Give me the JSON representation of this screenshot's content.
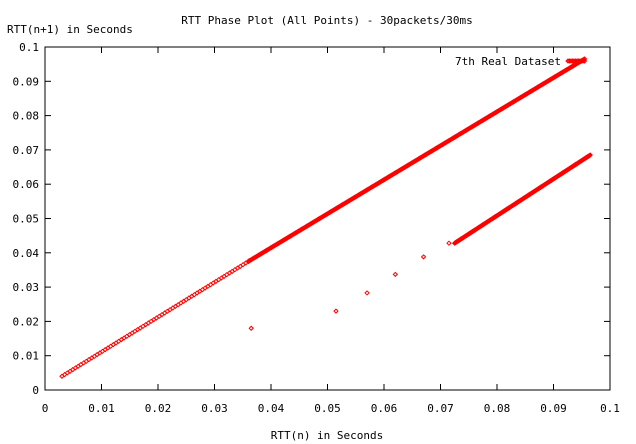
{
  "chart_data": {
    "type": "scatter",
    "title": "RTT Phase Plot (All Points) - 30packets/30ms",
    "xlabel": "RTT(n) in Seconds",
    "ylabel": "RTT(n+1) in Seconds",
    "xlim": [
      0,
      0.1
    ],
    "ylim": [
      0,
      0.1
    ],
    "xticks": [
      "0",
      "0.01",
      "0.02",
      "0.03",
      "0.04",
      "0.05",
      "0.06",
      "0.07",
      "0.08",
      "0.09",
      "0.1"
    ],
    "yticks": [
      "0",
      "0.01",
      "0.02",
      "0.03",
      "0.04",
      "0.05",
      "0.06",
      "0.07",
      "0.08",
      "0.09",
      "0.1"
    ],
    "grid": false,
    "legend_position": "top-right",
    "series": [
      {
        "name": "7th Real Dataset",
        "color": "#ff0000",
        "marker": "diamond",
        "segments": [
          {
            "x_start": 0.003,
            "x_end": 0.036,
            "y_start": 0.004,
            "y_end": 0.0375,
            "count": 70
          },
          {
            "x_start": 0.036,
            "x_end": 0.0955,
            "y_start": 0.0375,
            "y_end": 0.0965,
            "count": 420
          },
          {
            "x_start": 0.0725,
            "x_end": 0.0965,
            "y_start": 0.0428,
            "y_end": 0.0685,
            "count": 240
          }
        ],
        "points": [
          {
            "x": 0.0365,
            "y": 0.018
          },
          {
            "x": 0.0515,
            "y": 0.023
          },
          {
            "x": 0.057,
            "y": 0.0283
          },
          {
            "x": 0.062,
            "y": 0.0337
          },
          {
            "x": 0.067,
            "y": 0.0388
          },
          {
            "x": 0.0715,
            "y": 0.0428
          }
        ]
      }
    ]
  }
}
